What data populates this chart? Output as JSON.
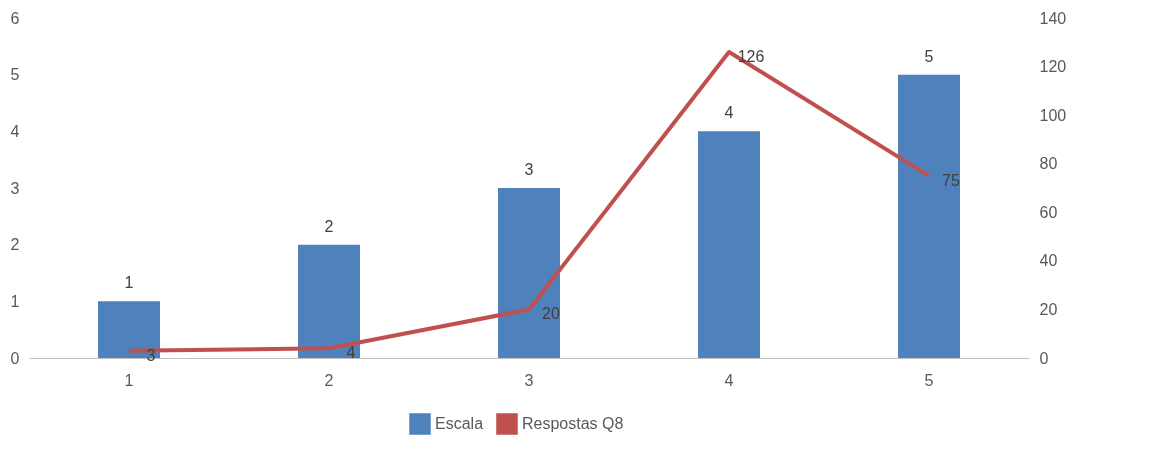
{
  "chart_data": {
    "type": "bar",
    "categories": [
      "1",
      "2",
      "3",
      "4",
      "5"
    ],
    "series": [
      {
        "name": "Escala",
        "color": "#4f81bd",
        "values": [
          1,
          2,
          3,
          4,
          5
        ]
      },
      {
        "name": "Respostas Q8",
        "type": "line",
        "axis": "y2",
        "color": "#c0504d",
        "values": [
          3,
          4,
          20,
          126,
          75
        ]
      }
    ],
    "ylim": [
      0,
      6
    ],
    "yticks": [
      0,
      1,
      2,
      3,
      4,
      5,
      6
    ],
    "y2lim": [
      0,
      140
    ],
    "y2ticks": [
      0,
      20,
      40,
      60,
      80,
      100,
      120,
      140
    ],
    "data_labels": true,
    "legend": "bottom",
    "grid": false,
    "marker": "none"
  }
}
